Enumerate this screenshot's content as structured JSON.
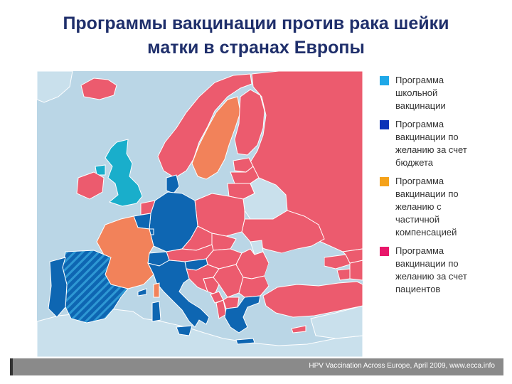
{
  "title": {
    "line1": "Программы вакцинации против рака шейки",
    "line2": "матки в странах Европы"
  },
  "colors": {
    "sea": "#bad6e6",
    "non_europe_land": "#c9e0ec",
    "border": "#ffffff",
    "school": "#19aecb",
    "budget": "#0e66b2",
    "partial": "#f2825a",
    "patient": "#ec5b6e",
    "no_data": "#c9e0ec",
    "legend_school": "#1fa8e8",
    "legend_budget": "#0b32b8",
    "legend_partial": "#f5a21a",
    "legend_patient": "#e8176a"
  },
  "legend": [
    {
      "key": "school",
      "label_lines": [
        "Программа",
        "школьной",
        "вакцинации"
      ]
    },
    {
      "key": "budget",
      "label_lines": [
        "Программа",
        "вакцинации по",
        "желанию за счет",
        "бюджета"
      ]
    },
    {
      "key": "partial",
      "label_lines": [
        "Программа",
        "вакцинации по",
        "желанию с",
        "частичной",
        "компенсацией"
      ]
    },
    {
      "key": "patient",
      "label_lines": [
        "Программа",
        "вакцинации по",
        "желанию за счет",
        "пациентов"
      ]
    }
  ],
  "map": {
    "regions": [
      {
        "name": "Iceland",
        "category": "patient"
      },
      {
        "name": "Ireland",
        "category": "patient"
      },
      {
        "name": "United Kingdom",
        "category": "school"
      },
      {
        "name": "Norway",
        "category": "patient"
      },
      {
        "name": "Sweden",
        "category": "partial"
      },
      {
        "name": "Finland",
        "category": "patient"
      },
      {
        "name": "Russia",
        "category": "patient"
      },
      {
        "name": "Estonia",
        "category": "patient"
      },
      {
        "name": "Latvia",
        "category": "patient"
      },
      {
        "name": "Lithuania",
        "category": "patient"
      },
      {
        "name": "Belarus",
        "category": "no_data"
      },
      {
        "name": "Poland",
        "category": "patient"
      },
      {
        "name": "Ukraine",
        "category": "patient"
      },
      {
        "name": "Denmark",
        "category": "budget"
      },
      {
        "name": "Netherlands",
        "category": "patient"
      },
      {
        "name": "Belgium",
        "category": "budget"
      },
      {
        "name": "Luxembourg",
        "category": "budget"
      },
      {
        "name": "Germany",
        "category": "budget"
      },
      {
        "name": "France",
        "category": "partial"
      },
      {
        "name": "Switzerland",
        "category": "budget"
      },
      {
        "name": "Austria",
        "category": "patient"
      },
      {
        "name": "Czech Republic",
        "category": "patient"
      },
      {
        "name": "Slovakia",
        "category": "patient"
      },
      {
        "name": "Hungary",
        "category": "patient"
      },
      {
        "name": "Slovenia",
        "category": "budget"
      },
      {
        "name": "Croatia",
        "category": "patient"
      },
      {
        "name": "Bosnia",
        "category": "patient"
      },
      {
        "name": "Serbia",
        "category": "patient"
      },
      {
        "name": "Montenegro",
        "category": "patient"
      },
      {
        "name": "Albania",
        "category": "patient"
      },
      {
        "name": "Macedonia",
        "category": "patient"
      },
      {
        "name": "Romania",
        "category": "patient"
      },
      {
        "name": "Moldova",
        "category": "no_data"
      },
      {
        "name": "Bulgaria",
        "category": "patient"
      },
      {
        "name": "Greece",
        "category": "budget"
      },
      {
        "name": "Italy",
        "category": "budget"
      },
      {
        "name": "Sardinia",
        "category": "budget"
      },
      {
        "name": "Corsica",
        "category": "partial"
      },
      {
        "name": "Portugal",
        "category": "budget"
      },
      {
        "name": "Spain",
        "category": "budget_partial_hatched"
      },
      {
        "name": "Turkey",
        "category": "patient"
      },
      {
        "name": "Cyprus",
        "category": "patient"
      },
      {
        "name": "Georgia",
        "category": "patient"
      },
      {
        "name": "Armenia",
        "category": "patient"
      },
      {
        "name": "Azerbaijan",
        "category": "patient"
      },
      {
        "name": "Kazakhstan",
        "category": "patient"
      }
    ]
  },
  "footer": {
    "source": "HPV Vaccination Across Europe, April 2009, www.ecca.info"
  }
}
